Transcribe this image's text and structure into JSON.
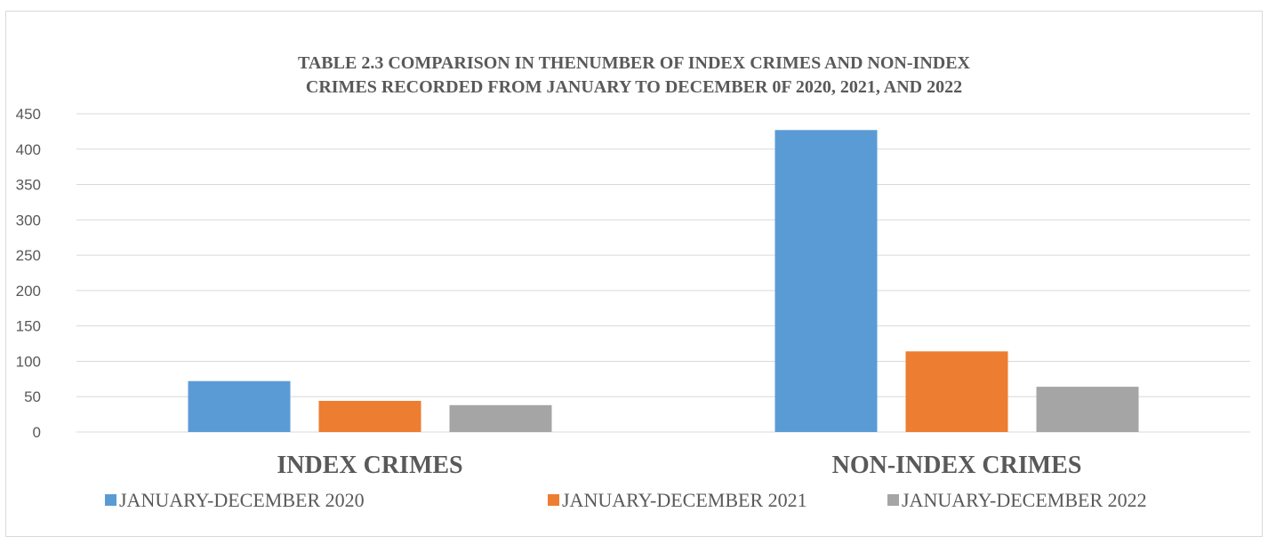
{
  "chart_data": {
    "type": "bar",
    "title_lines": [
      "TABLE 2.3 COMPARISON IN THENUMBER OF INDEX CRIMES AND NON-INDEX",
      "CRIMES RECORDED FROM JANUARY TO DECEMBER 0F 2020, 2021, AND 2022"
    ],
    "categories": [
      "INDEX CRIMES",
      "NON-INDEX CRIMES"
    ],
    "series": [
      {
        "name": "JANUARY-DECEMBER 2020",
        "values": [
          72,
          427
        ],
        "color": "#5b9bd5"
      },
      {
        "name": "JANUARY-DECEMBER 2021",
        "values": [
          44,
          114
        ],
        "color": "#ed7d31"
      },
      {
        "name": "JANUARY-DECEMBER 2022",
        "values": [
          38,
          64
        ],
        "color": "#a5a5a5"
      }
    ],
    "ylim": [
      0,
      450
    ],
    "yticks": [
      0,
      50,
      100,
      150,
      200,
      250,
      300,
      350,
      400,
      450
    ],
    "grid": true,
    "legend_position": "bottom",
    "xlabel": "",
    "ylabel": ""
  }
}
